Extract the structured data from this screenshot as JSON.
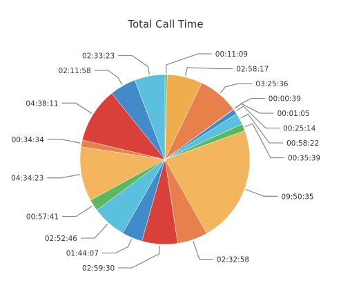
{
  "chart_data": {
    "type": "pie",
    "title": "Total Call Time",
    "slices": [
      {
        "label": "00:11:09",
        "value": 669,
        "color": "#5cb85c"
      },
      {
        "label": "02:58:17",
        "value": 10697,
        "color": "#f0ad4e"
      },
      {
        "label": "03:25:36",
        "value": 12336,
        "color": "#e8804b"
      },
      {
        "label": "00:00:39",
        "value": 39,
        "color": "#d9534f"
      },
      {
        "label": "00:01:05",
        "value": 65,
        "color": "#f0ad4e"
      },
      {
        "label": "00:25:14",
        "value": 1514,
        "color": "#428bca"
      },
      {
        "label": "00:58:22",
        "value": 3502,
        "color": "#5bc0de"
      },
      {
        "label": "00:35:39",
        "value": 2139,
        "color": "#5cb85c"
      },
      {
        "label": "09:50:35",
        "value": 35435,
        "color": "#f3b55e"
      },
      {
        "label": "02:32:58",
        "value": 9178,
        "color": "#e8804b"
      },
      {
        "label": "02:59:30",
        "value": 10770,
        "color": "#d9403a"
      },
      {
        "label": "01:44:07",
        "value": 6247,
        "color": "#428bca"
      },
      {
        "label": "02:52:46",
        "value": 10366,
        "color": "#5bc0de"
      },
      {
        "label": "00:57:41",
        "value": 3461,
        "color": "#5cb85c"
      },
      {
        "label": "04:34:23",
        "value": 16463,
        "color": "#f3b55e"
      },
      {
        "label": "00:34:34",
        "value": 2074,
        "color": "#e8804b"
      },
      {
        "label": "04:38:11",
        "value": 16691,
        "color": "#d9403a"
      },
      {
        "label": "02:11:58",
        "value": 7918,
        "color": "#428bca"
      },
      {
        "label": "02:33:23",
        "value": 9203,
        "color": "#5bc0de"
      }
    ]
  }
}
